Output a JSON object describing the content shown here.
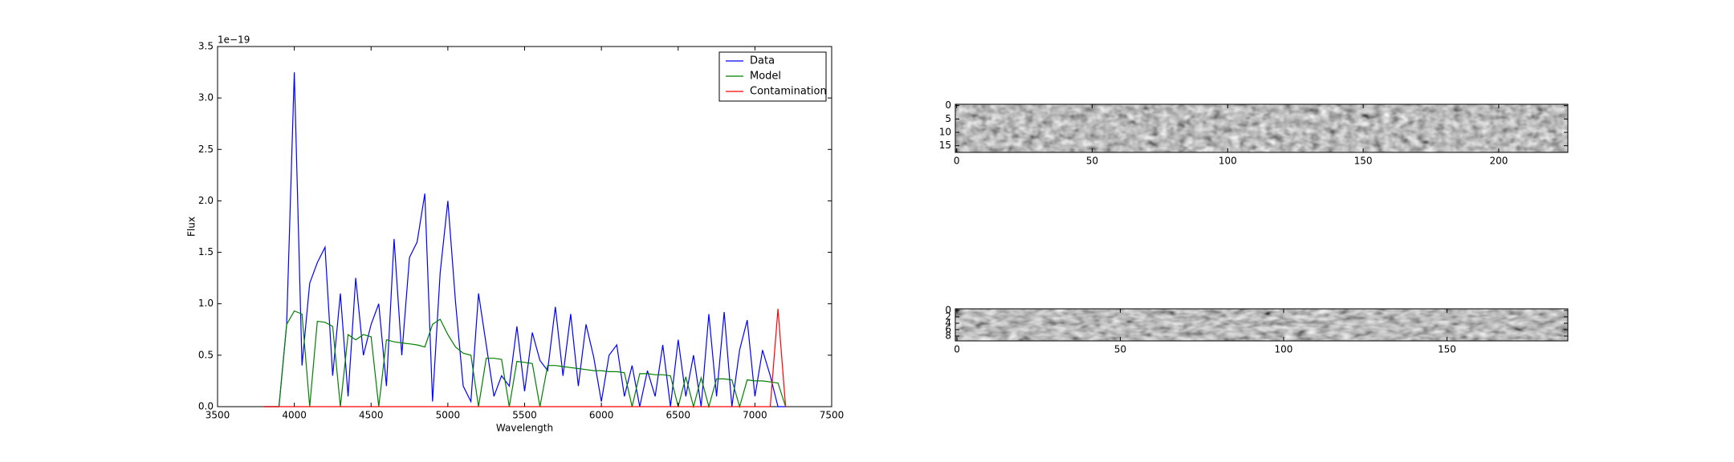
{
  "chart_data": [
    {
      "type": "line",
      "xlabel": "Wavelength",
      "ylabel": "Flux",
      "y_offset_label": "1e−19",
      "xlim": [
        3500,
        7500
      ],
      "xticks": [
        3500,
        4000,
        4500,
        5000,
        5500,
        6000,
        6500,
        7000,
        7500
      ],
      "ylim": [
        0,
        3.5
      ],
      "yticks": [
        {
          "value": 0,
          "label": "0.0"
        },
        0.5,
        {
          "value": 1,
          "label": "1.0"
        },
        1.5,
        {
          "value": 2,
          "label": "2.0"
        },
        2.5,
        {
          "value": 3,
          "label": "3.0"
        },
        3.5
      ],
      "legend": "upper right",
      "x": [
        3800,
        3850,
        3900,
        3950,
        4000,
        4050,
        4100,
        4150,
        4200,
        4250,
        4300,
        4350,
        4400,
        4450,
        4500,
        4550,
        4600,
        4650,
        4700,
        4750,
        4800,
        4850,
        4900,
        4950,
        5000,
        5050,
        5100,
        5150,
        5200,
        5250,
        5300,
        5350,
        5400,
        5450,
        5500,
        5550,
        5600,
        5650,
        5700,
        5750,
        5800,
        5850,
        5900,
        5950,
        6000,
        6050,
        6100,
        6150,
        6200,
        6250,
        6300,
        6350,
        6400,
        6450,
        6500,
        6550,
        6600,
        6650,
        6700,
        6750,
        6800,
        6850,
        6900,
        6950,
        7000,
        7050,
        7100,
        7150,
        7200
      ],
      "series": [
        {
          "name": "Data",
          "color": "#0000ff",
          "values": [
            0,
            0,
            0,
            0.8,
            3.25,
            0.4,
            1.2,
            1.4,
            1.55,
            0.3,
            1.1,
            0.1,
            1.25,
            0.5,
            0.8,
            1.0,
            0.2,
            1.63,
            0.5,
            1.45,
            1.6,
            2.07,
            0.05,
            1.3,
            2.0,
            1.02,
            0.2,
            0.05,
            1.1,
            0.6,
            0.1,
            0.3,
            0.2,
            0.78,
            0.15,
            0.72,
            0.45,
            0.35,
            0.97,
            0.3,
            0.9,
            0.2,
            0.8,
            0.48,
            0.05,
            0.5,
            0.6,
            0.1,
            0.4,
            0,
            0.35,
            0.1,
            0.6,
            0,
            0.65,
            0.1,
            0.5,
            0,
            0.9,
            0.1,
            0.92,
            0,
            0.55,
            0.84,
            0.1,
            0.55,
            0.3,
            0,
            0
          ]
        },
        {
          "name": "Model",
          "color": "#008000",
          "values": [
            0,
            0,
            0,
            0.8,
            0.93,
            0.9,
            0,
            0.83,
            0.82,
            0.78,
            0,
            0.7,
            0.65,
            0.7,
            0.68,
            0,
            0.65,
            0.63,
            0.62,
            0.61,
            0.6,
            0.58,
            0.8,
            0.85,
            0.7,
            0.58,
            0.52,
            0.5,
            0,
            0.47,
            0.47,
            0.46,
            0,
            0.44,
            0.43,
            0.42,
            0,
            0.4,
            0.4,
            0.39,
            0.38,
            0.37,
            0.36,
            0.35,
            0.35,
            0.34,
            0.34,
            0.33,
            0,
            0.32,
            0.32,
            0.31,
            0.31,
            0.3,
            0,
            0.29,
            0,
            0.28,
            0,
            0.27,
            0.27,
            0.26,
            0,
            0.26,
            0.25,
            0.25,
            0.24,
            0.23,
            0
          ]
        },
        {
          "name": "Contamination",
          "color": "#ff0000",
          "values": [
            0,
            0,
            0,
            0,
            0,
            0,
            0,
            0,
            0,
            0,
            0,
            0,
            0,
            0,
            0,
            0,
            0,
            0,
            0,
            0,
            0,
            0,
            0,
            0,
            0,
            0,
            0,
            0,
            0,
            0,
            0,
            0,
            0,
            0,
            0,
            0,
            0,
            0,
            0,
            0,
            0,
            0,
            0,
            0,
            0,
            0,
            0,
            0,
            0,
            0,
            0,
            0,
            0,
            0,
            0,
            0,
            0,
            0,
            0,
            0,
            0,
            0,
            0,
            0,
            0,
            0,
            0,
            0.95,
            0
          ]
        }
      ]
    },
    {
      "type": "image",
      "xlim": [
        -0.5,
        225.5
      ],
      "ylim": [
        -0.5,
        17.5
      ],
      "xticks": [
        0,
        50,
        100,
        150,
        200
      ],
      "yticks": [
        0,
        5,
        10,
        15
      ]
    },
    {
      "type": "image",
      "xlim": [
        -0.5,
        187
      ],
      "ylim": [
        -0.5,
        9.5
      ],
      "xticks": [
        0,
        50,
        100,
        150
      ],
      "yticks": [
        0,
        2,
        4,
        6,
        8
      ]
    }
  ]
}
